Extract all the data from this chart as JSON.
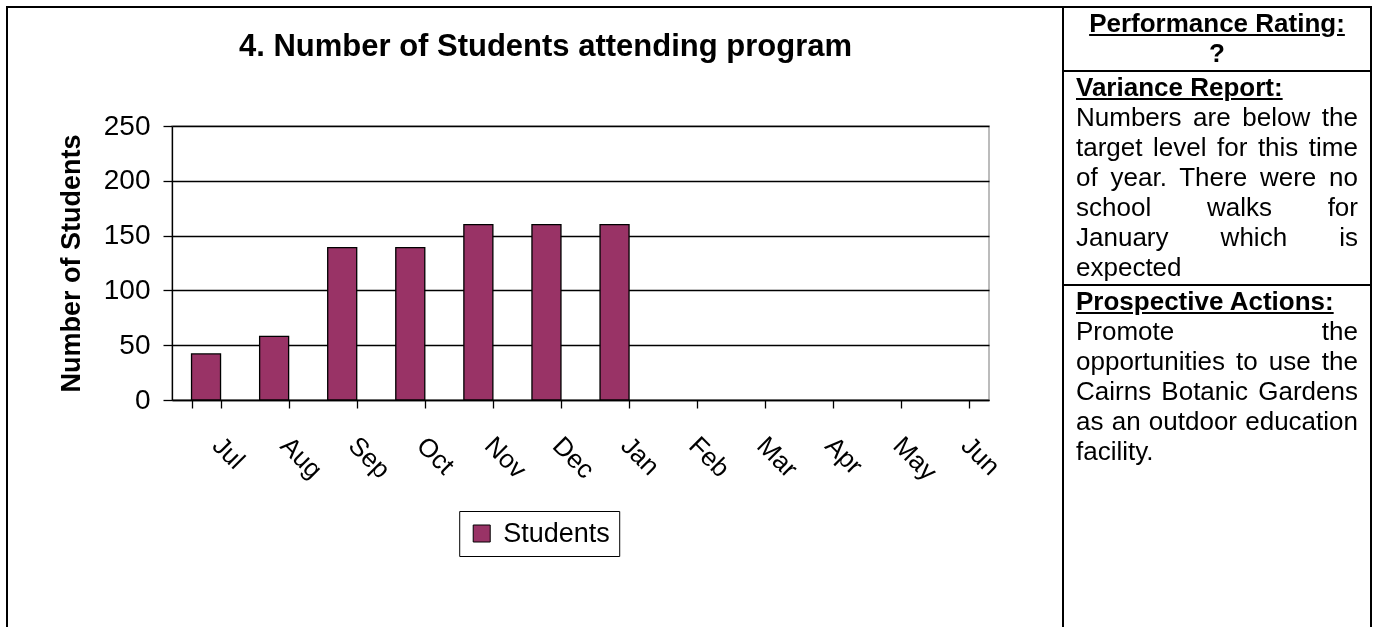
{
  "chart_data": [
    {
      "type": "bar",
      "title": "4. Number of Students attending program",
      "ylabel": "Number of Students",
      "categories": [
        "Jul",
        "Aug",
        "Sep",
        "Oct",
        "Nov",
        "Dec",
        "Jan",
        "Feb",
        "Mar",
        "Apr",
        "May",
        "Jun"
      ],
      "series": [
        {
          "name": "Students",
          "color": "#993366",
          "values": [
            42,
            58,
            139,
            139,
            160,
            160,
            160,
            null,
            null,
            null,
            null,
            null
          ]
        }
      ],
      "ylim": [
        0,
        250
      ],
      "yticks": [
        0,
        50,
        100,
        150,
        200,
        250
      ],
      "grid": "y",
      "legend": "bottom"
    },
    {
      "type": "other",
      "annotations": [
        "Performance Rating:",
        "?",
        "Variance Report:",
        "Numbers are below the target level for this time of year. There were no school walks for January which is expected",
        "Prospective Actions:",
        "Promote the opportunities to use the Cairns Botanic Gardens as an outdoor education facility."
      ]
    }
  ]
}
